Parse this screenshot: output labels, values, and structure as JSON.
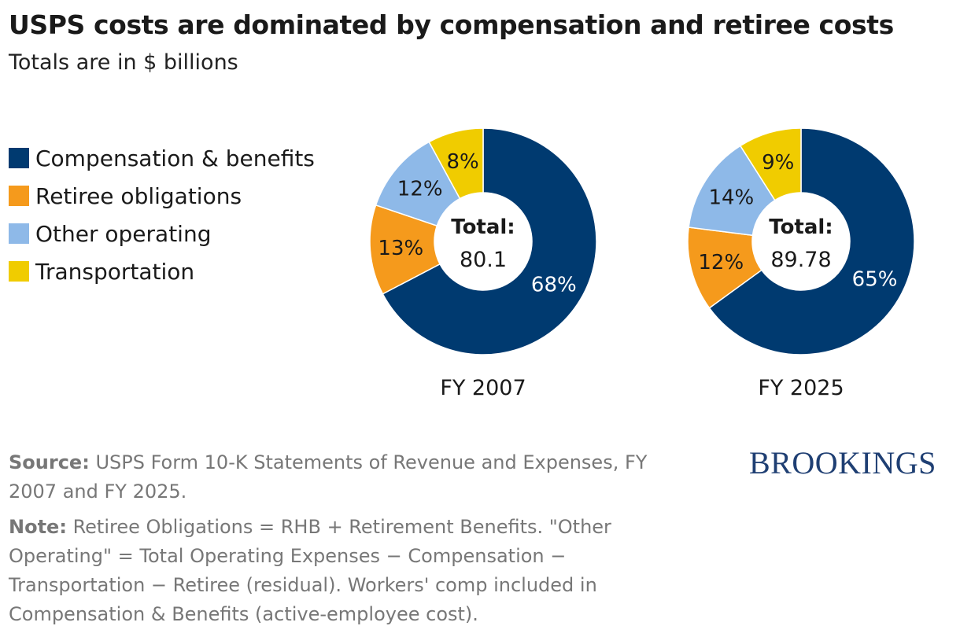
{
  "title": "USPS costs are dominated by compensation and retiree costs",
  "subtitle": "Totals are in $ billions",
  "legend": [
    {
      "label": "Compensation & benefits",
      "color": "#003a70"
    },
    {
      "label": "Retiree obligations",
      "color": "#f59a1c"
    },
    {
      "label": "Other operating",
      "color": "#8eb9e8"
    },
    {
      "label": "Transportation",
      "color": "#f0cc00"
    }
  ],
  "chart_data": [
    {
      "type": "pie",
      "variant": "donut",
      "title": "FY 2007",
      "center_label": "Total:",
      "center_value": "80.1",
      "slices": [
        {
          "name": "Compensation & benefits",
          "value": 68,
          "label": "68%"
        },
        {
          "name": "Retiree obligations",
          "value": 13,
          "label": "13%"
        },
        {
          "name": "Other operating",
          "value": 12,
          "label": "12%"
        },
        {
          "name": "Transportation",
          "value": 8,
          "label": "8%"
        }
      ]
    },
    {
      "type": "pie",
      "variant": "donut",
      "title": "FY 2025",
      "center_label": "Total:",
      "center_value": "89.78",
      "slices": [
        {
          "name": "Compensation & benefits",
          "value": 65,
          "label": "65%"
        },
        {
          "name": "Retiree obligations",
          "value": 12,
          "label": "12%"
        },
        {
          "name": "Other operating",
          "value": 14,
          "label": "14%"
        },
        {
          "name": "Transportation",
          "value": 9,
          "label": "9%"
        }
      ]
    }
  ],
  "source": {
    "label": "Source:",
    "text": "USPS Form 10-K Statements of Revenue and Expenses, FY 2007 and FY 2025."
  },
  "note": {
    "label": "Note:",
    "text": "Retiree Obligations = RHB + Retirement Benefits. \"Other Operating\" = Total Operating Expenses − Compensation − Transportation − Retiree (residual). Workers' comp included in Compensation & Benefits (active-employee cost)."
  },
  "brand": "BROOKINGS"
}
